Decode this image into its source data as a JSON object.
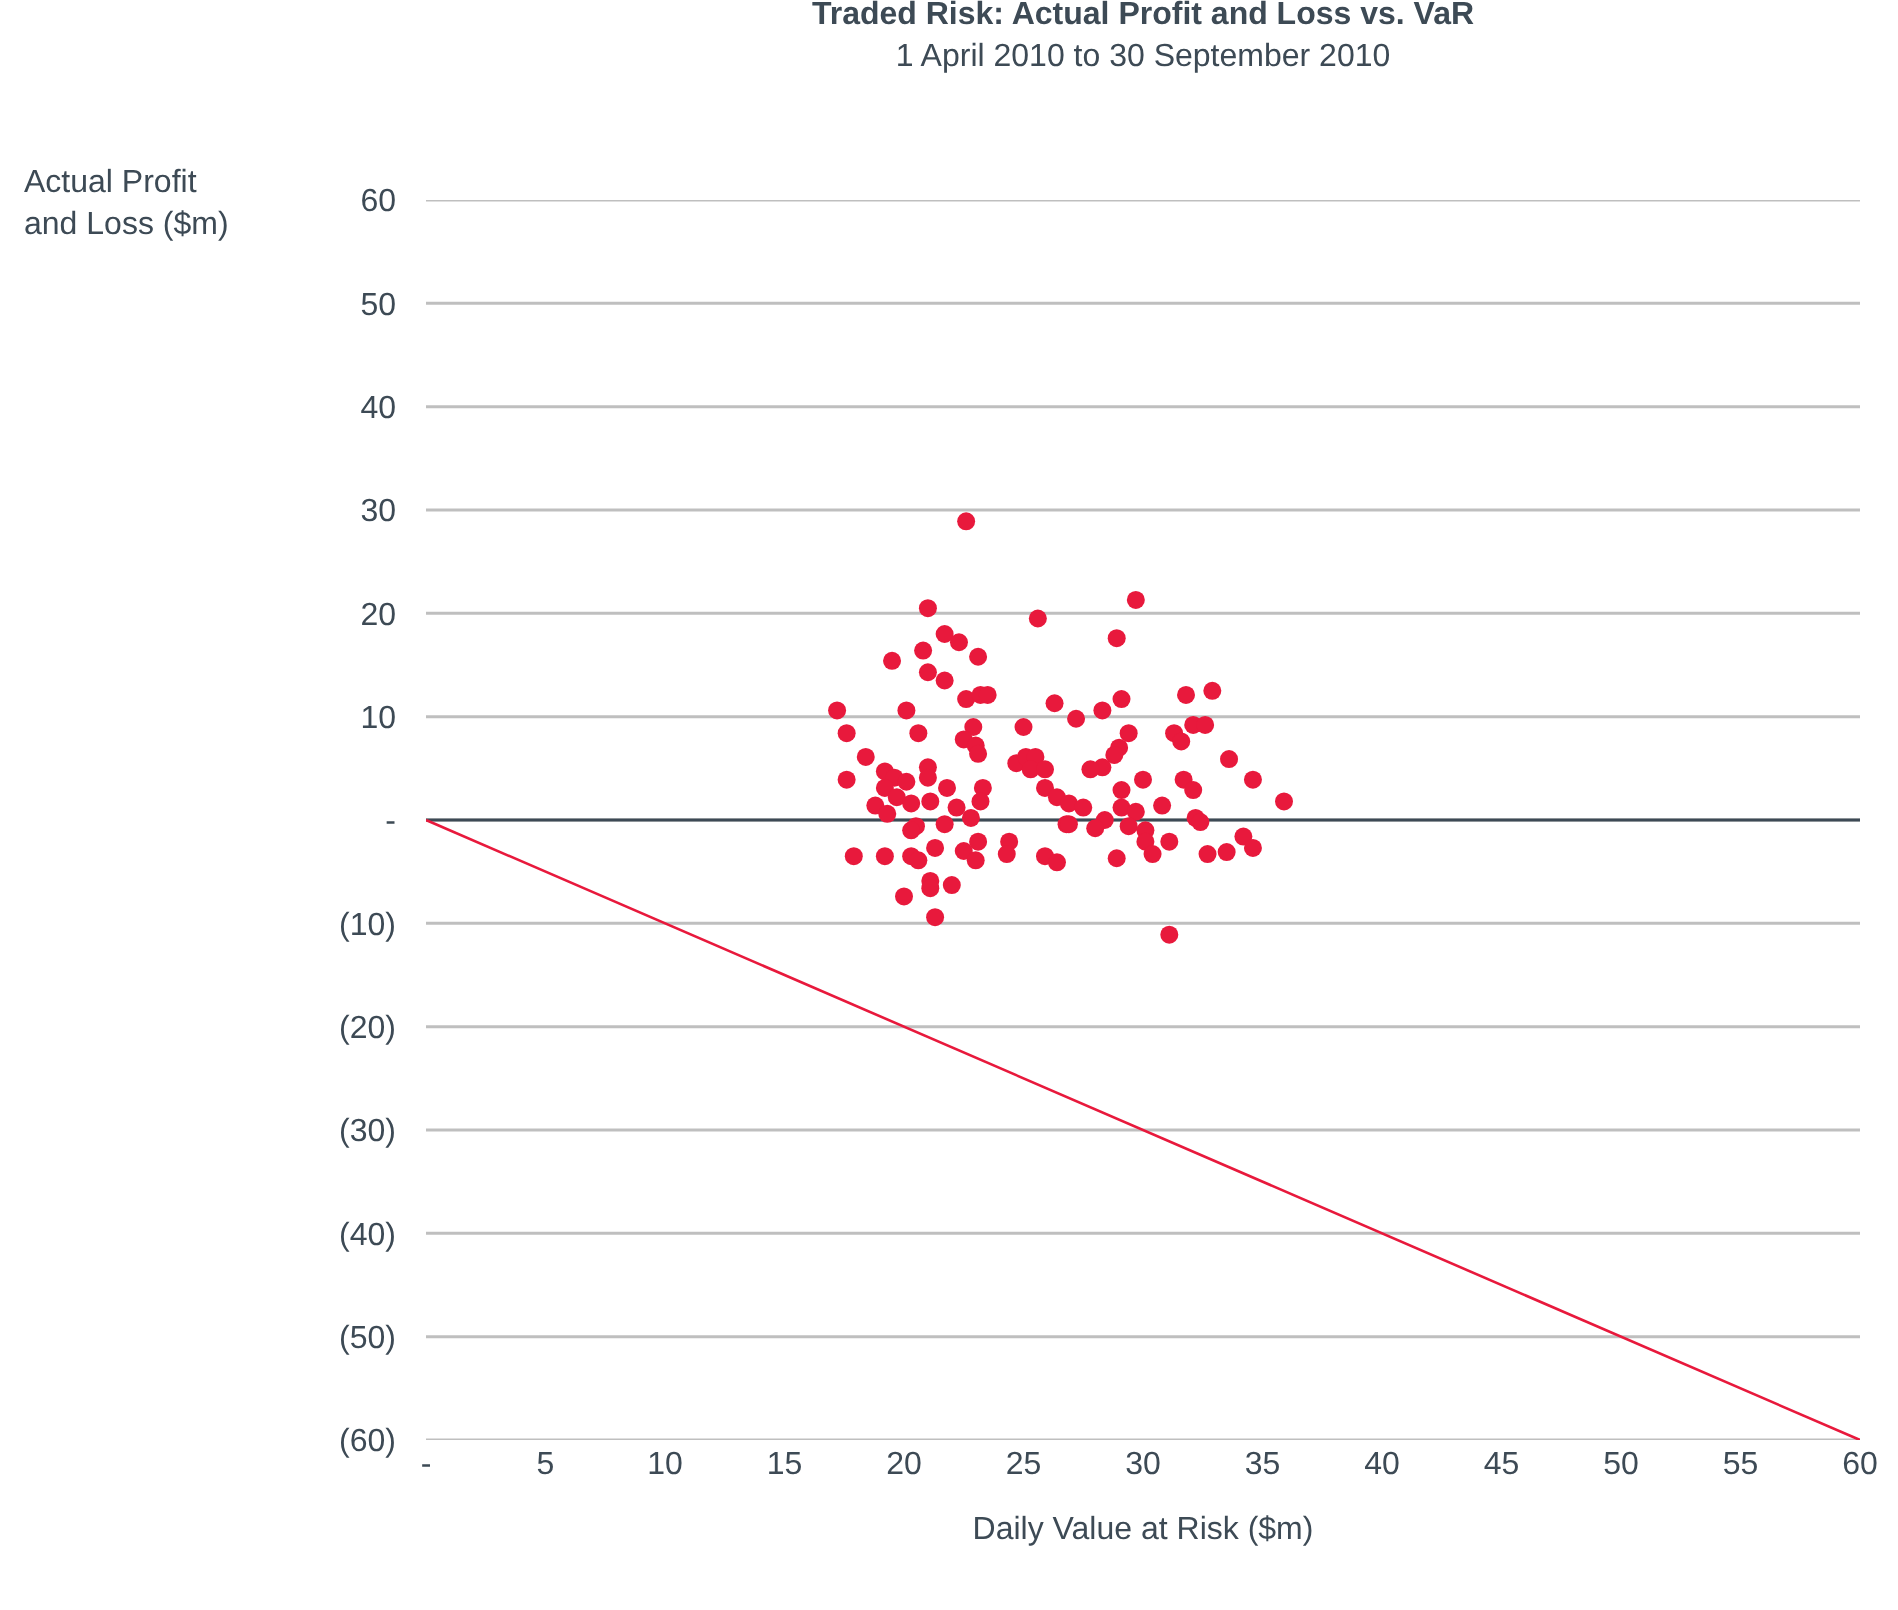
{
  "chart_data": {
    "type": "scatter",
    "title": "Traded Risk: Actual Profit and Loss vs. VaR",
    "subtitle": "1 April 2010 to 30 September 2010",
    "xlabel": "Daily Value at Risk ($m)",
    "ylabel": "Actual Profit\nand Loss ($m)",
    "xlim": [
      0,
      60
    ],
    "xticks": [
      {
        "value": 0,
        "label": "-"
      },
      5,
      10,
      15,
      20,
      25,
      30,
      35,
      40,
      45,
      50,
      55,
      60
    ],
    "ylim": [
      -60,
      60
    ],
    "yticks": [
      {
        "value": -60,
        "label": "(60)"
      },
      {
        "value": -50,
        "label": "(50)"
      },
      {
        "value": -40,
        "label": "(40)"
      },
      {
        "value": -30,
        "label": "(30)"
      },
      {
        "value": -20,
        "label": "(20)"
      },
      {
        "value": -10,
        "label": "(10)"
      },
      {
        "value": 0,
        "label": "-"
      },
      10,
      20,
      30,
      40,
      50,
      60
    ],
    "grid": "y",
    "ref_lines": [
      {
        "axis": "y",
        "value": 0,
        "color": "#3d4a55"
      }
    ],
    "series": [
      {
        "marker": "circle",
        "color": "#e8193c",
        "x": [
          22.6,
          21.0,
          25.6,
          21.7,
          22.3,
          20.8,
          23.1,
          19.5,
          21.0,
          21.7,
          17.2,
          20.1,
          22.6,
          23.2,
          23.5,
          26.3,
          17.6,
          20.6,
          22.9,
          22.5,
          23.0,
          25.0,
          18.4,
          23.1,
          24.7,
          25.1,
          25.5,
          25.3,
          25.9,
          17.6,
          19.2,
          19.6,
          21.0,
          21.0,
          20.1,
          19.2,
          21.8,
          23.3,
          25.9,
          26.4,
          19.7,
          18.8,
          20.3,
          21.1,
          23.2,
          19.3,
          22.2,
          22.8,
          26.8,
          20.5,
          20.3,
          21.7,
          23.1,
          24.4,
          17.9,
          19.2,
          20.3,
          21.3,
          22.5,
          23.0,
          24.3,
          25.9,
          26.4,
          20.6,
          21.1,
          21.1,
          22.0,
          20.0,
          21.3,
          29.7,
          28.9,
          27.2,
          28.3,
          29.1,
          31.8,
          32.9,
          31.3,
          31.6,
          32.1,
          32.6,
          29.4,
          29.0,
          28.8,
          28.3,
          27.8,
          33.6,
          34.6,
          35.9,
          29.1,
          30.0,
          31.7,
          32.1,
          26.9,
          27.5,
          29.1,
          29.7,
          30.8,
          28.4,
          26.9,
          28.0,
          29.4,
          32.2,
          32.4,
          30.1,
          30.1,
          30.4,
          31.1,
          34.2,
          34.6,
          32.7,
          33.5,
          28.9,
          31.1
        ],
        "values": [
          28.9,
          20.5,
          19.5,
          18.0,
          17.2,
          16.4,
          15.8,
          15.4,
          14.3,
          13.5,
          10.6,
          10.6,
          11.7,
          12.1,
          12.1,
          11.3,
          8.4,
          8.4,
          9.0,
          7.8,
          7.2,
          9.0,
          6.1,
          6.4,
          5.5,
          6.1,
          6.1,
          4.9,
          4.9,
          3.9,
          4.7,
          4.1,
          5.1,
          4.1,
          3.7,
          3.1,
          3.1,
          3.1,
          3.1,
          2.2,
          2.2,
          1.4,
          1.6,
          1.8,
          1.8,
          0.6,
          1.2,
          0.2,
          -0.4,
          -0.6,
          -1.0,
          -0.4,
          -2.1,
          -2.1,
          -3.5,
          -3.5,
          -3.5,
          -2.7,
          -3.0,
          -3.9,
          -3.3,
          -3.5,
          -4.1,
          -3.9,
          -5.9,
          -6.6,
          -6.3,
          -7.4,
          -9.4,
          21.3,
          17.6,
          9.8,
          10.6,
          11.7,
          12.1,
          12.5,
          8.4,
          7.6,
          9.2,
          9.2,
          8.4,
          7.0,
          6.3,
          5.1,
          4.9,
          5.9,
          3.9,
          1.8,
          2.9,
          3.9,
          3.9,
          2.9,
          1.6,
          1.2,
          1.2,
          0.8,
          1.4,
          0.0,
          -0.4,
          -0.8,
          -0.6,
          0.2,
          -0.2,
          -1.0,
          -2.1,
          -3.3,
          -2.1,
          -1.6,
          -2.7,
          -3.3,
          -3.1,
          -3.7,
          -11.1
        ]
      },
      {
        "type": "line",
        "color": "#e8193c",
        "x": [
          0,
          60
        ],
        "values": [
          0,
          -60
        ]
      }
    ]
  }
}
